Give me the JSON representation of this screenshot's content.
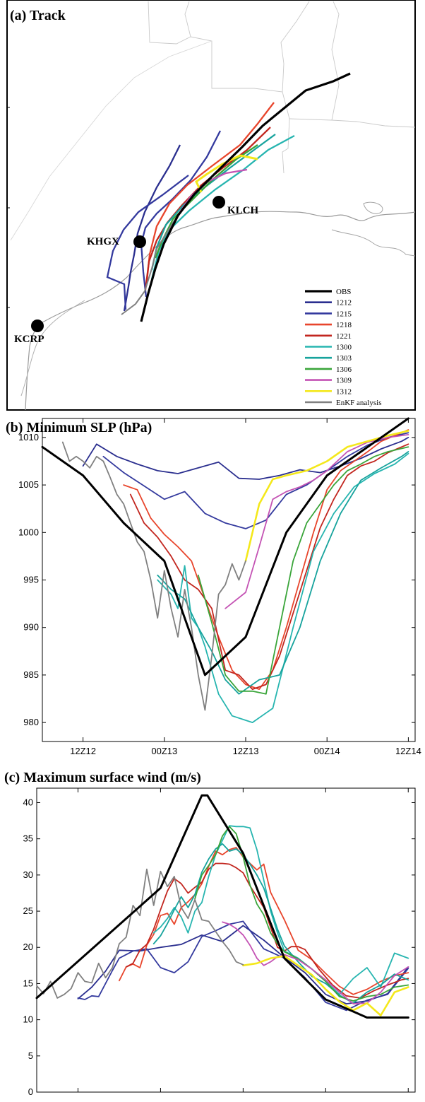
{
  "colors": {
    "OBS": "#000000",
    "1212": "#2b2f8f",
    "1215": "#343a9e",
    "1218": "#e8452c",
    "1221": "#c2261f",
    "1300": "#27b5b0",
    "1303": "#17a39d",
    "1306": "#3aa53a",
    "1309": "#c453b4",
    "1312": "#f4e81b",
    "EnKF analysis": "#808080"
  },
  "chart_data": [
    {
      "type": "line",
      "title": "(a) Track",
      "legend_position": "bottom-right",
      "stations": [
        {
          "name": "KLCH"
        },
        {
          "name": "KHGX"
        },
        {
          "name": "KCRP"
        }
      ],
      "series": [
        {
          "name": "OBS"
        },
        {
          "name": "1212"
        },
        {
          "name": "1215"
        },
        {
          "name": "1218"
        },
        {
          "name": "1221"
        },
        {
          "name": "1300"
        },
        {
          "name": "1303"
        },
        {
          "name": "1306"
        },
        {
          "name": "1309"
        },
        {
          "name": "1312"
        },
        {
          "name": "EnKF analysis"
        }
      ]
    },
    {
      "type": "line",
      "title": "(b) Minimum SLP (hPa)",
      "ylim": [
        978,
        1012
      ],
      "yticks": [
        980,
        985,
        990,
        995,
        1000,
        1005,
        1010
      ],
      "xlim_hours": [
        -6,
        49
      ],
      "xtick_labels": [
        "12Z12",
        "00Z13",
        "12Z13",
        "00Z14",
        "12Z14"
      ],
      "series": [
        {
          "name": "OBS",
          "x": [
            -6,
            0,
            6,
            12,
            18,
            24,
            30,
            36,
            42,
            48
          ],
          "y": [
            1009,
            1006,
            1001,
            997,
            985,
            989,
            1000,
            1006,
            1009,
            1012
          ]
        },
        {
          "name": "1212",
          "x": [
            0,
            2,
            5,
            8,
            11,
            14,
            17,
            20,
            23,
            26,
            29,
            32,
            35,
            38,
            41,
            44,
            47,
            48
          ],
          "y": [
            1007,
            1009.3,
            1008,
            1007.2,
            1006.5,
            1006.2,
            1006.8,
            1007.4,
            1005.7,
            1005.6,
            1006,
            1006.6,
            1006.3,
            1007,
            1007.8,
            1008.8,
            1009.6,
            1010
          ]
        },
        {
          "name": "1215",
          "x": [
            3,
            6,
            9,
            12,
            15,
            18,
            21,
            24,
            27,
            30,
            33,
            36,
            39,
            42,
            45,
            48
          ],
          "y": [
            1008,
            1006.3,
            1004.9,
            1003.5,
            1004.3,
            1002,
            1001,
            1000.4,
            1001.3,
            1004,
            1005,
            1006.5,
            1008,
            1009.2,
            1010,
            1010.5
          ]
        },
        {
          "name": "1218",
          "x": [
            6,
            8,
            10,
            12,
            14,
            16,
            18,
            20,
            22,
            24,
            26,
            28,
            30,
            32,
            34,
            36,
            38,
            40,
            42,
            44,
            46,
            48
          ],
          "y": [
            1005,
            1004.5,
            1001.5,
            999.8,
            998.5,
            997,
            993,
            989,
            985.5,
            984,
            983.5,
            985.5,
            990,
            995,
            1000,
            1004.5,
            1006.5,
            1007.5,
            1008.5,
            1009.6,
            1010.2,
            1010.8
          ]
        },
        {
          "name": "1221",
          "x": [
            7,
            9,
            11,
            13,
            15,
            17,
            19,
            21,
            23,
            25,
            27,
            29,
            31,
            33,
            35,
            37,
            39,
            41,
            43,
            45,
            47,
            48
          ],
          "y": [
            1004,
            1001,
            999.5,
            997.5,
            995,
            994,
            992,
            985.5,
            985,
            983.5,
            984,
            987,
            991.5,
            996,
            1000.5,
            1003.5,
            1006,
            1007,
            1007.5,
            1008.4,
            1009,
            1009.3
          ]
        },
        {
          "name": "1300",
          "x": [
            11,
            13,
            14,
            15,
            16,
            17,
            18,
            20,
            22,
            25,
            28,
            31,
            34,
            37,
            40,
            43,
            46,
            48
          ],
          "y": [
            995,
            993.5,
            992,
            996.5,
            991,
            990,
            988,
            983,
            980.7,
            980,
            981.5,
            990,
            998,
            1002,
            1004.8,
            1006.2,
            1007.2,
            1008.3
          ]
        },
        {
          "name": "1303",
          "x": [
            11,
            13,
            15,
            17,
            19,
            21,
            23,
            26,
            29,
            32,
            35,
            38,
            41,
            44,
            47,
            48
          ],
          "y": [
            995.5,
            994,
            993,
            990,
            987.5,
            984.5,
            983,
            984.5,
            985,
            990,
            997,
            1002,
            1005.5,
            1006.8,
            1008,
            1008.5
          ]
        },
        {
          "name": "1306",
          "x": [
            17,
            19,
            21,
            23,
            25,
            27,
            29,
            31,
            33,
            35,
            37,
            39,
            41,
            43,
            45,
            48
          ],
          "y": [
            995.5,
            990.5,
            985,
            983.3,
            983.3,
            983,
            990,
            997,
            1001,
            1003,
            1005,
            1006.5,
            1007.2,
            1008,
            1008.5,
            1009
          ]
        },
        {
          "name": "1309",
          "x": [
            21,
            24,
            26,
            28,
            30,
            32,
            34,
            36,
            39,
            42,
            45,
            48
          ],
          "y": [
            992,
            993.7,
            998.5,
            1003.5,
            1004.3,
            1004.8,
            1005.5,
            1006.5,
            1008.5,
            1009.5,
            1010,
            1010.3
          ]
        },
        {
          "name": "1312",
          "x": [
            24,
            26,
            28,
            30,
            33,
            36,
            39,
            42,
            45,
            48
          ],
          "y": [
            997,
            1003,
            1005.6,
            1006,
            1006.5,
            1007.5,
            1009,
            1009.6,
            1010.2,
            1010.7
          ]
        },
        {
          "name": "EnKF analysis",
          "x": [
            -3,
            -2,
            -1,
            0,
            1,
            2,
            3,
            4,
            5,
            6,
            7,
            8,
            9,
            10,
            11,
            12,
            13,
            14,
            15,
            16,
            17,
            18,
            19,
            20,
            21,
            22,
            23,
            24
          ],
          "y": [
            1009.5,
            1007.5,
            1008,
            1007.5,
            1006.8,
            1008,
            1007.5,
            1005.8,
            1004,
            1003,
            1001,
            999,
            998,
            995,
            991,
            996,
            992,
            989,
            994,
            990,
            985,
            981.3,
            987,
            993.5,
            994.5,
            996.7,
            995,
            997
          ]
        }
      ]
    },
    {
      "type": "line",
      "title": "(c) Maximum surface wind (m/s)",
      "ylim": [
        0,
        42
      ],
      "yticks": [
        0,
        5,
        10,
        15,
        20,
        25,
        30,
        35,
        40
      ],
      "xlim_hours": [
        -6,
        49
      ],
      "xtick_labels": [
        "12Z12",
        "00Z13",
        "12Z13",
        "00Z14",
        "12Z14"
      ],
      "series": [
        {
          "name": "OBS",
          "x": [
            -6,
            12,
            18,
            18.8,
            24,
            30,
            36,
            42,
            48
          ],
          "y": [
            13,
            28.2,
            41,
            41,
            33,
            18.5,
            12.8,
            10.3,
            10.3
          ]
        },
        {
          "name": "1212",
          "x": [
            0,
            2,
            4,
            6,
            9,
            12,
            15,
            18,
            21,
            24,
            27,
            30,
            33,
            36,
            39,
            42,
            45,
            48
          ],
          "y": [
            12.9,
            14.5,
            16.7,
            19.6,
            19.5,
            20,
            20.4,
            21.7,
            20.8,
            23,
            21,
            18.6,
            16.5,
            13.5,
            12.2,
            12.6,
            13.6,
            17.3
          ]
        },
        {
          "name": "1215",
          "x": [
            0,
            1,
            2,
            3,
            5,
            6,
            8,
            10,
            12,
            14,
            16,
            18,
            20,
            22,
            24,
            27,
            30,
            33,
            36,
            39,
            42,
            45,
            48
          ],
          "y": [
            13,
            12.8,
            13.3,
            13.2,
            16.8,
            18.5,
            19.5,
            19.8,
            17.2,
            16.5,
            18,
            21.5,
            22.3,
            23.2,
            23.6,
            19.8,
            18.5,
            15.8,
            12.4,
            11.3,
            12.7,
            13.5,
            17.1
          ]
        },
        {
          "name": "1218",
          "x": [
            6,
            7,
            8,
            9,
            10,
            11,
            12,
            13,
            14,
            15,
            16,
            17,
            18,
            19,
            20,
            21,
            22,
            23,
            24,
            26,
            27,
            28,
            30,
            32,
            34,
            36,
            38,
            40,
            42,
            44,
            46,
            48
          ],
          "y": [
            15.4,
            17.3,
            17.7,
            17.2,
            20.3,
            21.8,
            24.4,
            24.7,
            23.2,
            25.5,
            26.3,
            27.3,
            28.8,
            31.2,
            33.3,
            32.8,
            33.5,
            33.8,
            32.5,
            30.7,
            31.5,
            27.6,
            23.8,
            19.6,
            18.3,
            16.4,
            14.6,
            13.5,
            14.2,
            15.3,
            16.1,
            16.5
          ]
        },
        {
          "name": "1221",
          "x": [
            7,
            8,
            9,
            10,
            11,
            12,
            13,
            14,
            15,
            16,
            17,
            18,
            19,
            20,
            21,
            22,
            23,
            24,
            25,
            27,
            29,
            30,
            31,
            32,
            33,
            35,
            37,
            39,
            41,
            43,
            45,
            47,
            48
          ],
          "y": [
            17.3,
            17.8,
            19.6,
            20.4,
            22.5,
            25.2,
            27.8,
            29.5,
            28.8,
            27.5,
            28.3,
            29,
            30.8,
            31.6,
            31.6,
            31.5,
            31,
            30.3,
            28.5,
            25.5,
            20,
            19.5,
            20.1,
            20.1,
            19.7,
            17,
            14.8,
            13.3,
            13,
            14,
            14.8,
            15.5,
            15.7
          ]
        },
        {
          "name": "1300",
          "x": [
            11,
            12,
            13,
            14,
            15,
            16,
            17,
            18,
            19,
            20,
            21,
            22,
            23,
            24,
            25,
            26,
            27,
            28,
            29,
            30,
            32,
            34,
            36,
            38,
            40,
            42,
            44,
            46,
            48
          ],
          "y": [
            22,
            22.8,
            24,
            25.5,
            24.2,
            22,
            25,
            26.2,
            29.8,
            32.8,
            34.8,
            36.8,
            36.7,
            36.7,
            36.5,
            33.5,
            29.3,
            25,
            22,
            19.5,
            18.5,
            17,
            15.3,
            13.5,
            15.7,
            17.2,
            14.5,
            19.2,
            18.5
          ]
        },
        {
          "name": "1303",
          "x": [
            11,
            12,
            13,
            14,
            15,
            16,
            17,
            18,
            19,
            20,
            21,
            22,
            23,
            24,
            25,
            26,
            27,
            28,
            29,
            30,
            32,
            34,
            36,
            38,
            40,
            42,
            44,
            46,
            48
          ],
          "y": [
            20.5,
            21.6,
            23.3,
            25.2,
            27,
            25.5,
            27.3,
            30.4,
            32.2,
            33.6,
            34.3,
            33.3,
            33.6,
            32.8,
            31.5,
            30,
            28.2,
            25.4,
            22.5,
            20.2,
            18,
            16,
            15,
            13.4,
            12.3,
            13.8,
            14.8,
            16.3,
            15.5
          ]
        },
        {
          "name": "1306",
          "x": [
            17,
            18,
            19,
            20,
            21,
            22,
            23,
            24,
            25,
            26,
            27,
            28,
            29,
            30,
            32,
            34,
            36,
            38,
            40,
            42,
            44,
            46,
            48
          ],
          "y": [
            26.7,
            30,
            31.3,
            32.8,
            35.4,
            36.7,
            35.7,
            32.5,
            28.6,
            26,
            24.5,
            22,
            20.5,
            19.4,
            18.4,
            17,
            15.3,
            13.2,
            12.6,
            13.2,
            13.5,
            14.5,
            14.8
          ]
        },
        {
          "name": "1309",
          "x": [
            21,
            22,
            23,
            24,
            25,
            26,
            27,
            28,
            29,
            30,
            32,
            34,
            36,
            38,
            40,
            42,
            44,
            46,
            48
          ],
          "y": [
            23.5,
            23.2,
            22.6,
            21.7,
            20.3,
            18.5,
            17.5,
            18,
            18.7,
            19,
            18.3,
            17,
            15.5,
            13.8,
            12.2,
            12.3,
            13.8,
            16.1,
            17.3
          ]
        },
        {
          "name": "1312",
          "x": [
            24,
            26,
            28,
            30,
            32,
            34,
            36,
            38,
            40,
            42,
            44,
            46,
            48
          ],
          "y": [
            17.5,
            17.8,
            18.5,
            18.8,
            17.5,
            16.2,
            14.2,
            12.5,
            11.3,
            12.3,
            10.6,
            13.8,
            14.5
          ]
        },
        {
          "name": "EnKF analysis",
          "x": [
            -6,
            -5,
            -4,
            -3,
            -2,
            -1,
            0,
            1,
            2,
            3,
            4,
            5,
            6,
            7,
            8,
            9,
            10,
            11,
            12,
            13,
            14,
            15,
            16,
            17,
            18,
            19,
            20,
            21,
            22,
            23,
            24
          ],
          "y": [
            14.7,
            13.6,
            15.3,
            13,
            13.5,
            14.3,
            16.5,
            15.3,
            15.1,
            17.8,
            15.8,
            17.2,
            20.5,
            21.4,
            25.8,
            24.4,
            30.8,
            25.8,
            30.5,
            28.4,
            29.8,
            25.5,
            24,
            26.6,
            23.8,
            23.6,
            22.2,
            20.8,
            19.6,
            18,
            17.6
          ]
        }
      ]
    }
  ]
}
